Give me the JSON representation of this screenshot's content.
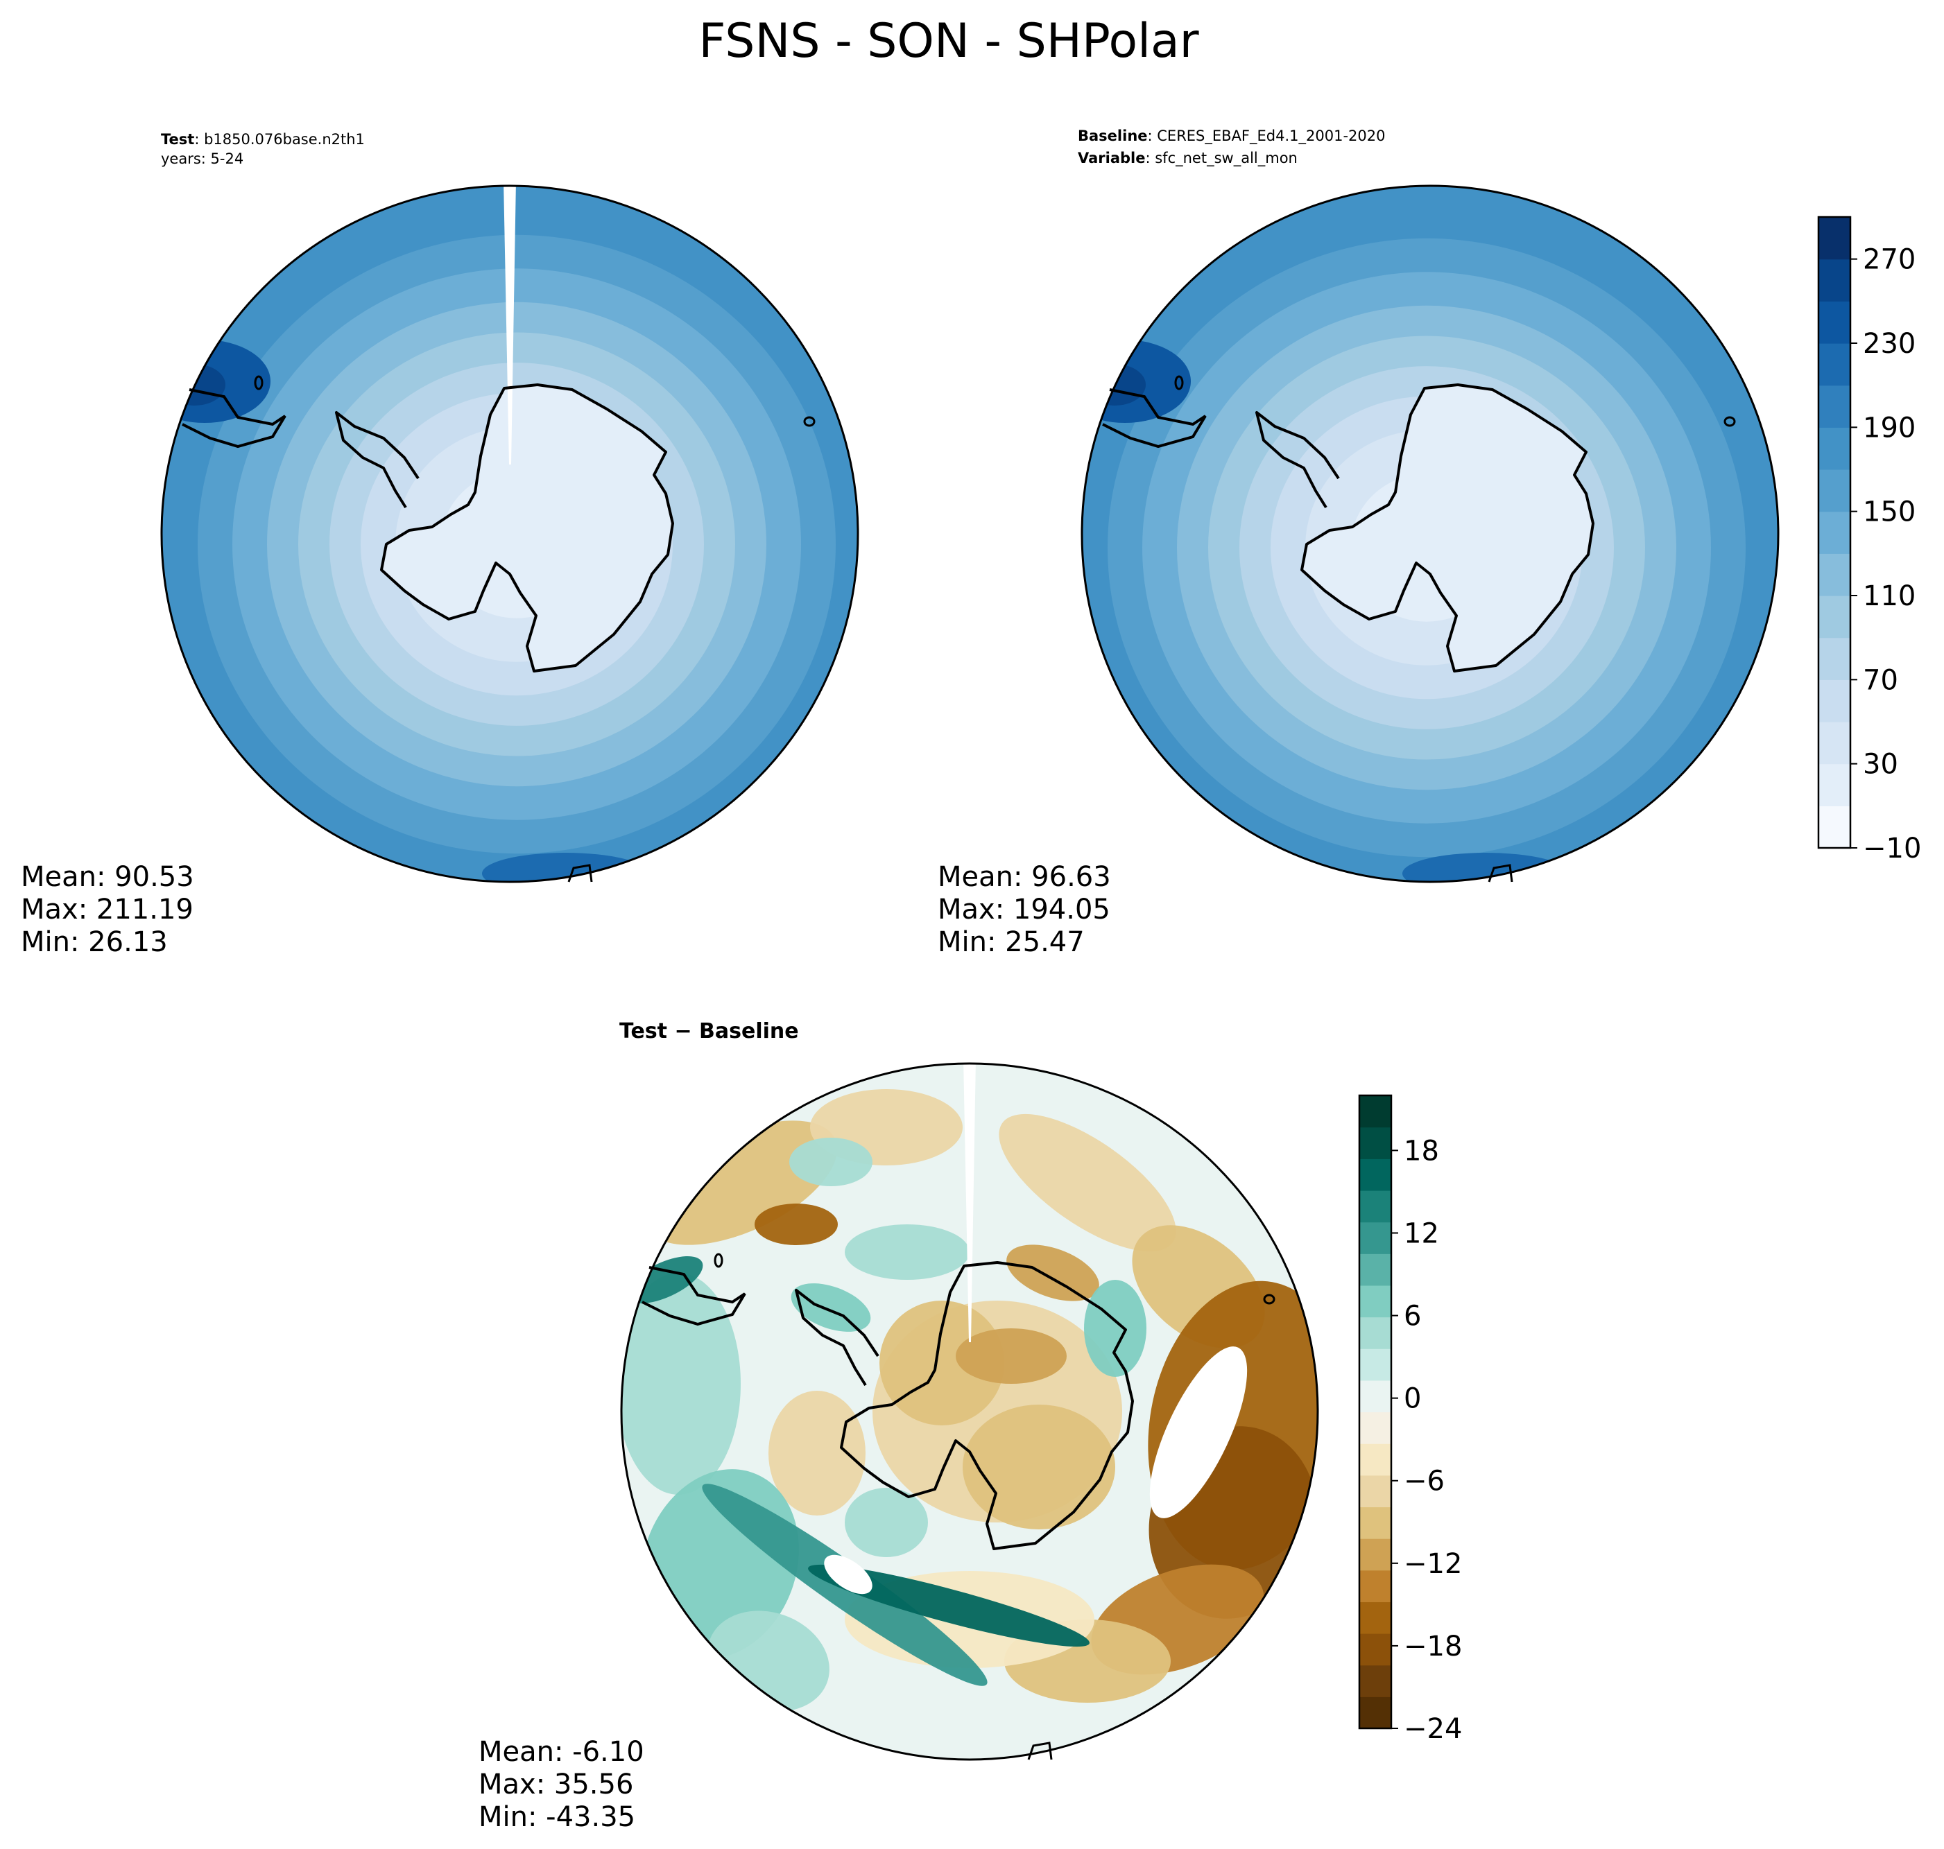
{
  "figure_title": "FSNS - SON - SHPolar",
  "colors": {
    "blues": [
      "#f5f9fe",
      "#e3eef9",
      "#d6e5f4",
      "#c9ddf0",
      "#b6d4e9",
      "#9fcae1",
      "#87bddc",
      "#6caed6",
      "#559fcd",
      "#4292c6",
      "#3080bd",
      "#1c6bb0",
      "#0d57a1",
      "#08458a",
      "#08306b"
    ],
    "diverging": [
      "#543005",
      "#6d3f0b",
      "#8c510a",
      "#a3640f",
      "#bf812d",
      "#cfa254",
      "#dfc27d",
      "#ebd6a7",
      "#f6e8c3",
      "#f5f0e3",
      "#eaf4f2",
      "#c7eae5",
      "#a7dcd3",
      "#80cdc1",
      "#5ab2a8",
      "#35978f",
      "#1b8279",
      "#01665e",
      "#004f44",
      "#003c30"
    ]
  },
  "chart_data": [
    {
      "type": "heatmap",
      "projection": "south polar stereographic",
      "title_left_bold": "Test",
      "title_left_text": ": b1850.076base.n2th1",
      "title_left_line2": "years: 5-24",
      "stats": {
        "mean": "Mean: 90.53",
        "max": "Max: 211.19",
        "min": "Min: 26.13"
      },
      "colorbar": "shared"
    },
    {
      "type": "heatmap",
      "projection": "south polar stereographic",
      "title_line1_bold": "Baseline",
      "title_line1_text": ": CERES_EBAF_Ed4.1_2001-2020",
      "title_line2_bold": "Variable",
      "title_line2_text": ": sfc_net_sw_all_mon",
      "stats": {
        "mean": "Mean: 96.63",
        "max": "Max: 194.05",
        "min": "Min: 25.47"
      },
      "colorbar": {
        "vmin": -10,
        "vmax": 290,
        "levels": 15,
        "ticks": [
          -10,
          30,
          70,
          110,
          150,
          190,
          230,
          270
        ],
        "tick_labels": [
          "−10",
          "30",
          "70",
          "110",
          "150",
          "190",
          "230",
          "270"
        ]
      }
    },
    {
      "type": "heatmap",
      "projection": "south polar stereographic",
      "title_bold": "Test − Baseline",
      "stats": {
        "mean": "Mean: -6.10",
        "max": "Max: 35.56",
        "min": "Min: -43.35"
      },
      "colorbar": {
        "vmin": -24,
        "vmax": 22,
        "levels": 20,
        "ticks": [
          -24,
          -18,
          -12,
          -6,
          0,
          6,
          12,
          18
        ],
        "tick_labels": [
          "−24",
          "−18",
          "−12",
          "−6",
          "0",
          "6",
          "12",
          "18"
        ]
      }
    }
  ]
}
